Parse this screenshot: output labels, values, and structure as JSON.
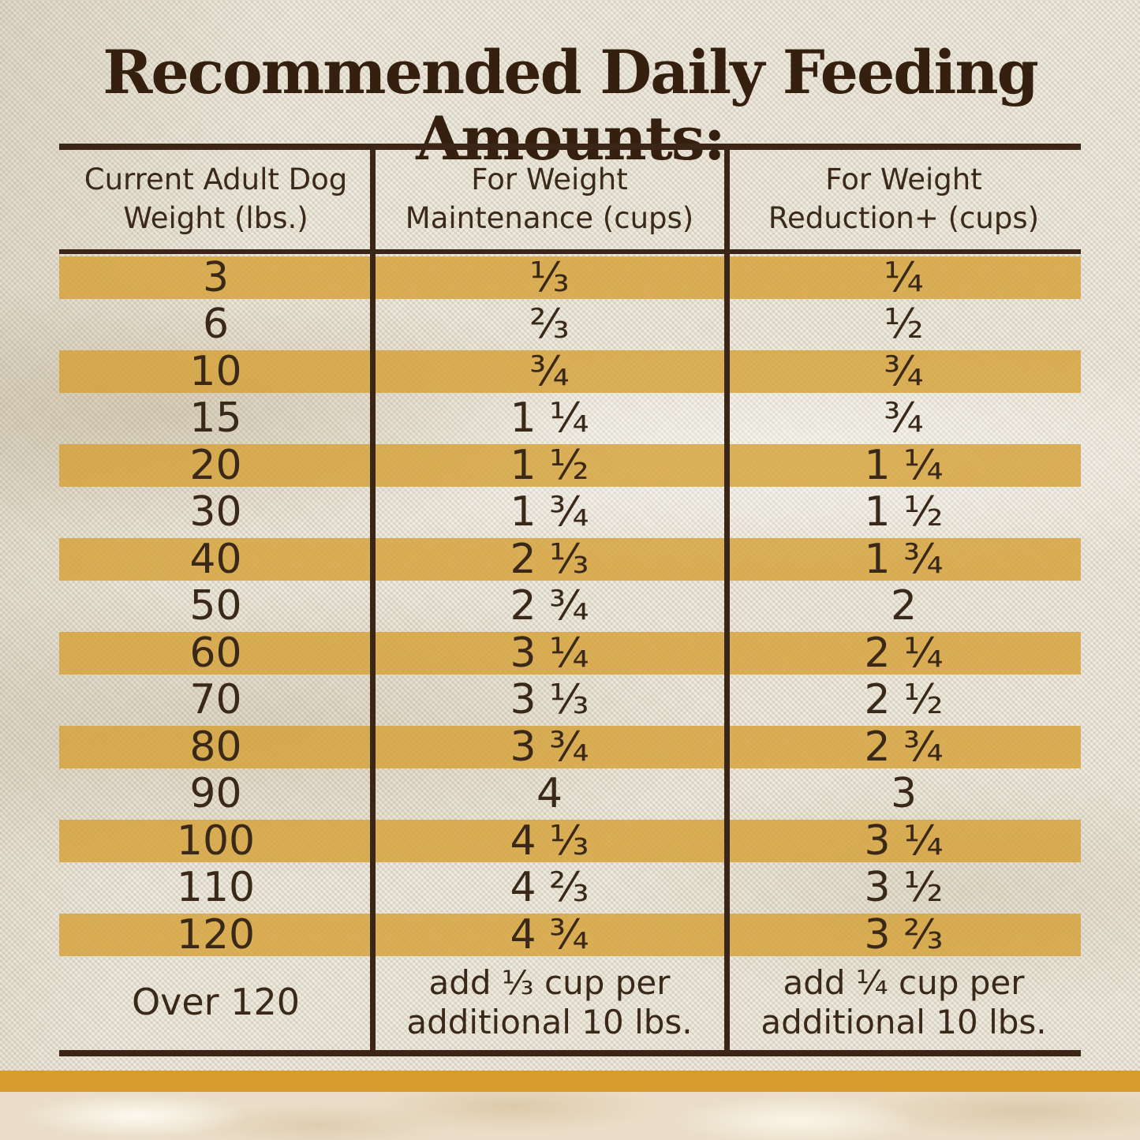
{
  "title": "Recommended Daily Feeding Amounts:",
  "table": {
    "columns": [
      {
        "line1": "Current Adult Dog",
        "line2": "Weight (lbs.)"
      },
      {
        "line1": "For Weight",
        "line2": "Maintenance (cups)"
      },
      {
        "line1": "For Weight",
        "line2": "Reduction+ (cups)"
      }
    ],
    "rows": [
      {
        "weight": "3",
        "maintenance": "⅓",
        "reduction": "¼",
        "highlight": true
      },
      {
        "weight": "6",
        "maintenance": "⅔",
        "reduction": "½",
        "highlight": false
      },
      {
        "weight": "10",
        "maintenance": "¾",
        "reduction": "¾",
        "highlight": true
      },
      {
        "weight": "15",
        "maintenance": "1 ¼",
        "reduction": "¾",
        "highlight": false
      },
      {
        "weight": "20",
        "maintenance": "1 ½",
        "reduction": "1 ¼",
        "highlight": true
      },
      {
        "weight": "30",
        "maintenance": "1 ¾",
        "reduction": "1 ½",
        "highlight": false
      },
      {
        "weight": "40",
        "maintenance": "2 ⅓",
        "reduction": "1 ¾",
        "highlight": true
      },
      {
        "weight": "50",
        "maintenance": "2 ¾",
        "reduction": "2",
        "highlight": false
      },
      {
        "weight": "60",
        "maintenance": "3 ¼",
        "reduction": "2 ¼",
        "highlight": true
      },
      {
        "weight": "70",
        "maintenance": "3 ⅓",
        "reduction": "2 ½",
        "highlight": false
      },
      {
        "weight": "80",
        "maintenance": "3 ¾",
        "reduction": "2 ¾",
        "highlight": true
      },
      {
        "weight": "90",
        "maintenance": "4",
        "reduction": "3",
        "highlight": false
      },
      {
        "weight": "100",
        "maintenance": "4 ⅓",
        "reduction": "3 ¼",
        "highlight": true
      },
      {
        "weight": "110",
        "maintenance": "4 ⅔",
        "reduction": "3 ½",
        "highlight": false
      },
      {
        "weight": "120",
        "maintenance": "4 ¾",
        "reduction": "3 ⅔",
        "highlight": true
      },
      {
        "weight": "Over 120",
        "maintenance": "add ⅓ cup per additional 10 lbs.",
        "reduction": "add ¼ cup per additional 10 lbs.",
        "highlight": false
      }
    ]
  },
  "colors": {
    "title_ink": "#35200F",
    "table_ink": "#3A2818",
    "rule_brown": "#3A2517",
    "stripe_gold": "#D5A034",
    "accent_bar_amber": "#D89B2D",
    "burlap_base": "#E8E3D5",
    "marble_base": "#EADEC8"
  }
}
